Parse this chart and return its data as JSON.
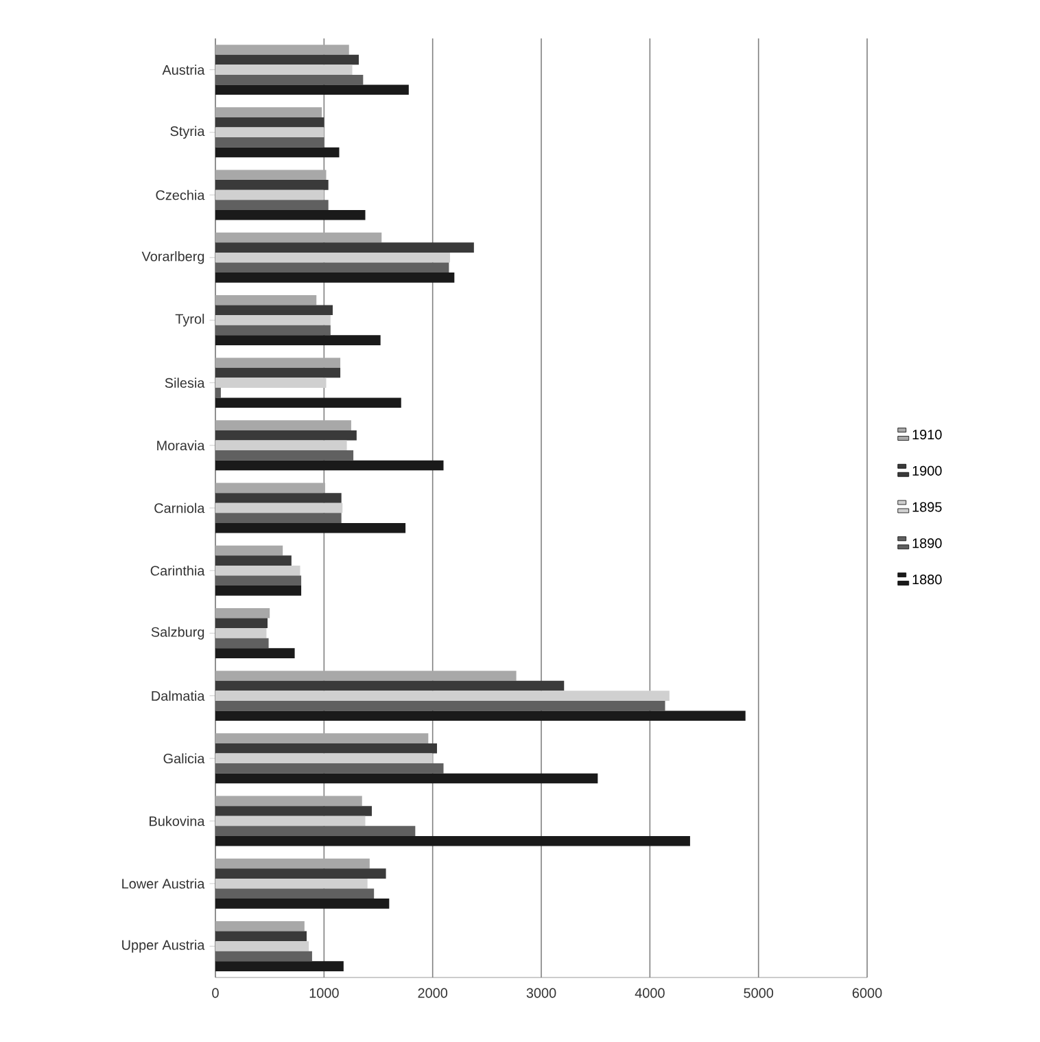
{
  "chart_data": {
    "type": "bar",
    "orientation": "horizontal",
    "categories": [
      "Austria",
      "Styria",
      "Czechia",
      "Vorarlberg",
      "Tyrol",
      "Silesia",
      "Moravia",
      "Carniola",
      "Carinthia",
      "Salzburg",
      "Dalmatia",
      "Galicia",
      "Bukovina",
      "Lower Austria",
      "Upper Austria"
    ],
    "series": [
      {
        "name": "1910",
        "color": "#a8a8a8",
        "values": [
          1230,
          980,
          1020,
          1530,
          930,
          1150,
          1250,
          1010,
          620,
          500,
          2770,
          1960,
          1350,
          1420,
          820
        ]
      },
      {
        "name": "1900",
        "color": "#3a3a3a",
        "values": [
          1320,
          1000,
          1040,
          2380,
          1080,
          1150,
          1300,
          1160,
          700,
          480,
          3210,
          2040,
          1440,
          1570,
          840
        ]
      },
      {
        "name": "1895",
        "color": "#d0d0d0",
        "values": [
          1260,
          1000,
          1000,
          2160,
          1060,
          1020,
          1210,
          1170,
          780,
          470,
          4180,
          2000,
          1380,
          1400,
          860
        ]
      },
      {
        "name": "1890",
        "color": "#606060",
        "values": [
          1360,
          1000,
          1040,
          2150,
          1060,
          50,
          1270,
          1160,
          790,
          490,
          4140,
          2100,
          1840,
          1460,
          890
        ]
      },
      {
        "name": "1880",
        "color": "#1a1a1a",
        "values": [
          1780,
          1140,
          1380,
          2200,
          1520,
          1710,
          2100,
          1750,
          790,
          730,
          4880,
          3520,
          4370,
          1600,
          1180
        ]
      }
    ],
    "xlim": [
      0,
      6000
    ],
    "xticks": [
      0,
      1000,
      2000,
      3000,
      4000,
      5000,
      6000
    ],
    "grid": "x",
    "legend": "right"
  }
}
